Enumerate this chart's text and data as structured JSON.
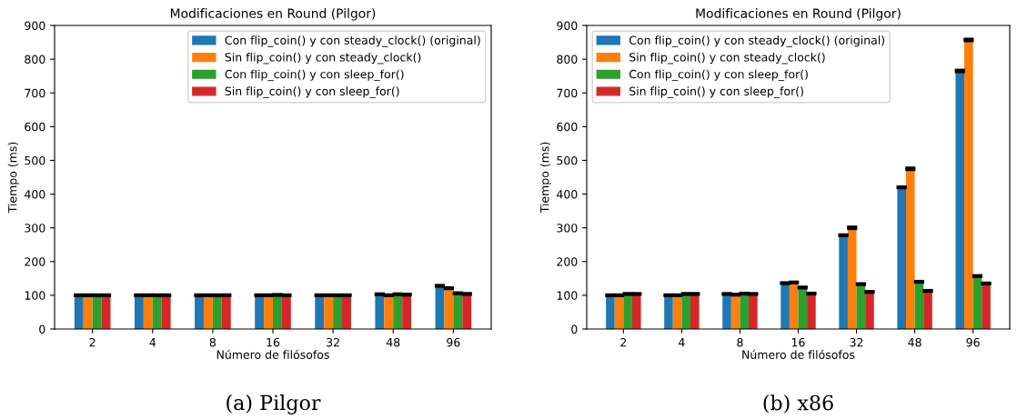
{
  "chart_data": [
    {
      "type": "bar",
      "title": "Modificaciones en Round (Pilgor)",
      "xlabel": "Número de filósofos",
      "ylabel": "Tiempo (ms)",
      "categories": [
        "2",
        "4",
        "8",
        "16",
        "32",
        "48",
        "96"
      ],
      "ylim": [
        0,
        900
      ],
      "yticks": [
        0,
        100,
        200,
        300,
        400,
        500,
        600,
        700,
        800,
        900
      ],
      "legend": "top right",
      "grid": false,
      "annotations": [
        "(a) Pilgor"
      ],
      "series": [
        {
          "name": "Con flip_coin() y con steady_clock() (original)",
          "color": "#1f77b4",
          "values": [
            100,
            100,
            100,
            100,
            100,
            103,
            128
          ],
          "errors": [
            2,
            2,
            2,
            2,
            2,
            2,
            2
          ]
        },
        {
          "name": "Sin flip_coin() y con steady_clock()",
          "color": "#ff7f0e",
          "values": [
            100,
            100,
            100,
            100,
            100,
            100,
            121
          ],
          "errors": [
            2,
            2,
            2,
            2,
            2,
            2,
            2
          ]
        },
        {
          "name": "Con flip_coin() y con sleep_for()",
          "color": "#2ca02c",
          "values": [
            100,
            100,
            100,
            101,
            100,
            103,
            106
          ],
          "errors": [
            2,
            2,
            2,
            2,
            2,
            2,
            2
          ]
        },
        {
          "name": "Sin flip_coin() y con sleep_for()",
          "color": "#d62728",
          "values": [
            100,
            100,
            100,
            100,
            100,
            102,
            104
          ],
          "errors": [
            2,
            2,
            2,
            2,
            2,
            2,
            2
          ]
        }
      ]
    },
    {
      "type": "bar",
      "title": "Modificaciones en Round (Pilgor)",
      "xlabel": "Número de filósofos",
      "ylabel": "Tiempo (ms)",
      "categories": [
        "2",
        "4",
        "8",
        "16",
        "32",
        "48",
        "96"
      ],
      "ylim": [
        0,
        900
      ],
      "yticks": [
        0,
        100,
        200,
        300,
        400,
        500,
        600,
        700,
        800,
        900
      ],
      "legend": "top left",
      "grid": false,
      "annotations": [
        "(b) x86"
      ],
      "series": [
        {
          "name": "Con flip_coin() y con steady_clock() (original)",
          "color": "#1f77b4",
          "values": [
            100,
            100,
            104,
            136,
            278,
            420,
            765
          ],
          "errors": [
            2,
            2,
            2,
            2,
            2,
            2,
            3
          ]
        },
        {
          "name": "Sin flip_coin() y con steady_clock()",
          "color": "#ff7f0e",
          "values": [
            100,
            100,
            102,
            138,
            300,
            475,
            857
          ],
          "errors": [
            2,
            2,
            2,
            2,
            3,
            3,
            3
          ]
        },
        {
          "name": "Con flip_coin() y con sleep_for()",
          "color": "#2ca02c",
          "values": [
            104,
            104,
            105,
            123,
            133,
            140,
            157
          ],
          "errors": [
            2,
            2,
            2,
            2,
            2,
            2,
            2
          ]
        },
        {
          "name": "Sin flip_coin() y con sleep_for()",
          "color": "#d62728",
          "values": [
            104,
            104,
            104,
            105,
            110,
            113,
            135
          ],
          "errors": [
            2,
            2,
            2,
            2,
            2,
            2,
            2
          ]
        }
      ]
    }
  ]
}
